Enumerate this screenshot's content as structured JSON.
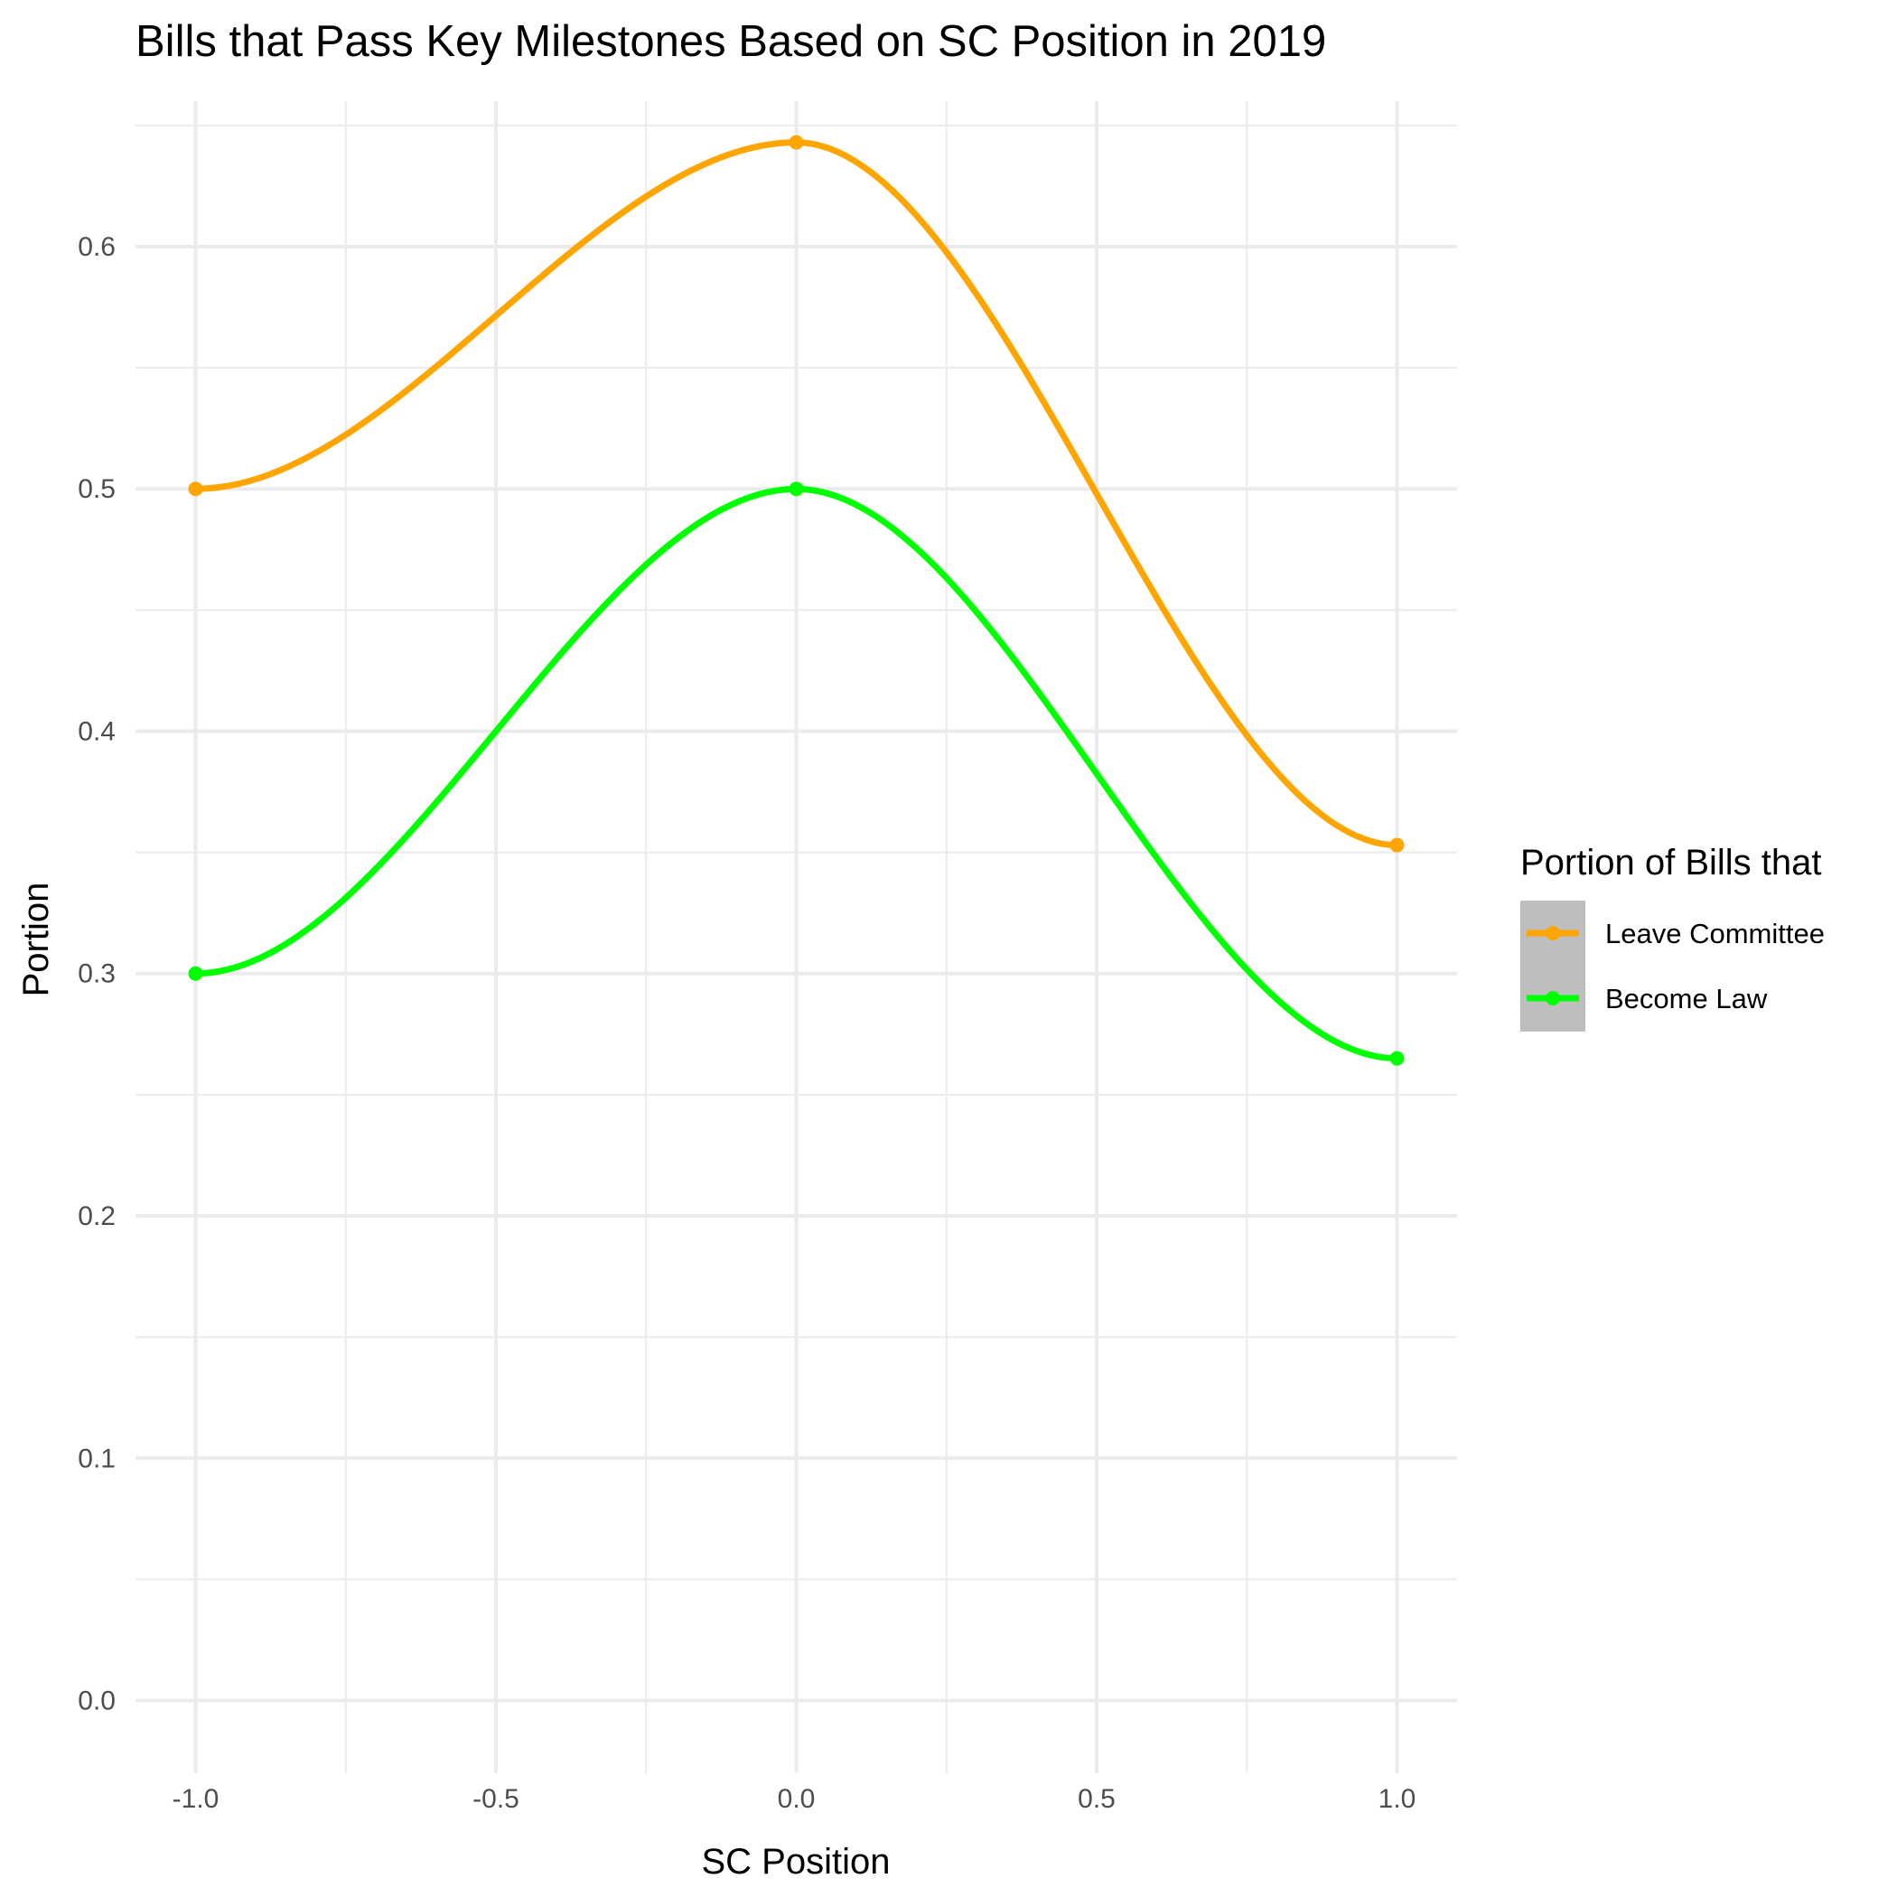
{
  "chart_data": {
    "type": "line",
    "title": "Bills that Pass Key Milestones Based on SC Position in 2019",
    "xlabel": "SC Position",
    "ylabel": "Portion",
    "x": [
      -1.0,
      0.0,
      1.0
    ],
    "xlim": [
      -1.1,
      1.1
    ],
    "ylim": [
      -0.03,
      0.66
    ],
    "x_ticks": [
      -1.0,
      -0.5,
      0.0,
      0.5,
      1.0
    ],
    "x_tick_labels": [
      "-1.0",
      "-0.5",
      "0.0",
      "0.5",
      "1.0"
    ],
    "y_ticks": [
      0.0,
      0.1,
      0.2,
      0.3,
      0.4,
      0.5,
      0.6
    ],
    "y_tick_labels": [
      "0.0",
      "0.1",
      "0.2",
      "0.3",
      "0.4",
      "0.5",
      "0.6"
    ],
    "grid": true,
    "smoothed": true,
    "legend": {
      "title": "Portion of Bills that",
      "position": "right",
      "key_background": "#bebebe"
    },
    "series": [
      {
        "name": "Leave Committee",
        "color": "#FFA500",
        "values": [
          0.5,
          0.643,
          0.353
        ]
      },
      {
        "name": "Become Law",
        "color": "#00FF00",
        "values": [
          0.3,
          0.5,
          0.265
        ]
      }
    ]
  }
}
